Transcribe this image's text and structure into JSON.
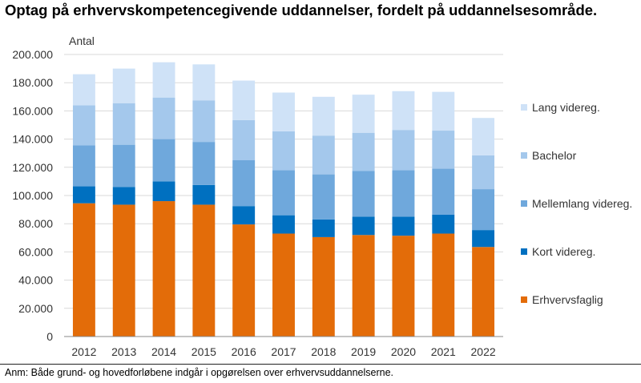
{
  "header": {
    "title": "Optag på erhvervskompetencegivende uddannelser, fordelt på uddannelsesområde."
  },
  "footer": {
    "note": "Anm: Både grund- og hovedforløbene indgår i opgørelsen over erhvervsuddannelserne."
  },
  "chart_data": {
    "type": "bar",
    "stacked": true,
    "title": "Optag på erhvervskompetencegivende uddannelser, fordelt på uddannelsesområde.",
    "ylabel": "Antal",
    "xlabel": "",
    "ylim": [
      0,
      200000
    ],
    "yticks": [
      "0",
      "20.000",
      "40.000",
      "60.000",
      "80.000",
      "100.000",
      "120.000",
      "140.000",
      "160.000",
      "180.000",
      "200.000"
    ],
    "grid": true,
    "legend_position": "right",
    "categories": [
      "2012",
      "2013",
      "2014",
      "2015",
      "2016",
      "2017",
      "2018",
      "2019",
      "2020",
      "2021",
      "2022"
    ],
    "series": [
      {
        "name": "Erhvervsfaglig",
        "color": "#E36C09",
        "values": [
          94500,
          93500,
          96000,
          93500,
          79500,
          73000,
          70500,
          72000,
          71500,
          73000,
          63500
        ]
      },
      {
        "name": "Kort videreg.",
        "color": "#0070C0",
        "values": [
          12000,
          12500,
          14000,
          14000,
          13000,
          13000,
          12500,
          13000,
          13500,
          13500,
          12000
        ]
      },
      {
        "name": "Mellemlang videreg.",
        "color": "#6FA8DC",
        "values": [
          29000,
          30000,
          30000,
          30500,
          32500,
          32000,
          32000,
          32500,
          33000,
          32500,
          29000
        ]
      },
      {
        "name": "Bachelor",
        "color": "#A4C8EC",
        "values": [
          28500,
          29500,
          29500,
          29500,
          28500,
          27500,
          27500,
          27000,
          28500,
          27000,
          24000
        ]
      },
      {
        "name": "Lang videreg.",
        "color": "#CFE2F7",
        "values": [
          22000,
          24500,
          25000,
          25500,
          28000,
          27500,
          27500,
          27000,
          27500,
          27500,
          26500
        ]
      }
    ]
  }
}
